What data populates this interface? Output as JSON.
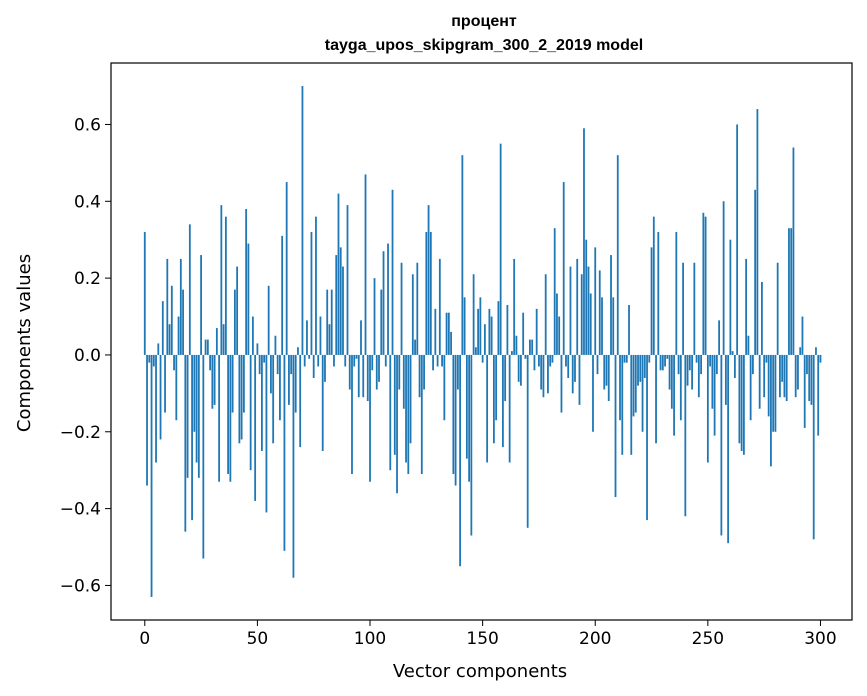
{
  "chart_data": {
    "type": "bar",
    "title": "процент",
    "subtitle": "tayga_upos_skipgram_300_2_2019 model",
    "xlabel": "Vector components",
    "ylabel": "Components values",
    "xlim": [
      -15,
      314
    ],
    "ylim": [
      -0.69,
      0.76
    ],
    "x_ticks": [
      0,
      50,
      100,
      150,
      200,
      250,
      300
    ],
    "x_tick_labels": [
      "0",
      "50",
      "100",
      "150",
      "200",
      "250",
      "300"
    ],
    "y_ticks": [
      -0.6,
      -0.4,
      -0.2,
      0.0,
      0.2,
      0.4,
      0.6
    ],
    "y_tick_labels": [
      "−0.6",
      "−0.4",
      "−0.2",
      "0.0",
      "0.2",
      "0.4",
      "0.6"
    ],
    "grid": false,
    "bar_color": "#1f77b4",
    "values": [
      0.32,
      -0.34,
      -0.02,
      -0.63,
      -0.03,
      -0.28,
      0.03,
      -0.22,
      0.14,
      -0.15,
      0.25,
      0.08,
      0.18,
      -0.04,
      -0.17,
      0.1,
      0.25,
      0.17,
      -0.46,
      -0.32,
      0.34,
      -0.43,
      -0.2,
      -0.28,
      -0.32,
      0.26,
      -0.53,
      0.04,
      0.04,
      -0.04,
      -0.14,
      -0.13,
      0.07,
      -0.33,
      0.39,
      0.08,
      0.36,
      -0.31,
      -0.33,
      -0.15,
      0.17,
      0.23,
      -0.23,
      -0.22,
      -0.15,
      0.38,
      0.29,
      -0.3,
      0.1,
      -0.38,
      0.03,
      -0.05,
      -0.25,
      -0.02,
      -0.41,
      0.18,
      -0.1,
      -0.23,
      0.05,
      -0.05,
      -0.17,
      0.31,
      -0.51,
      0.45,
      -0.13,
      -0.05,
      -0.58,
      -0.15,
      0.02,
      -0.24,
      0.7,
      -0.03,
      0.09,
      -0.01,
      0.32,
      -0.06,
      0.36,
      -0.03,
      0.1,
      -0.25,
      -0.07,
      0.17,
      0.08,
      0.17,
      -0.03,
      0.26,
      0.42,
      0.28,
      0.23,
      -0.03,
      0.39,
      -0.09,
      -0.31,
      -0.03,
      -0.01,
      -0.11,
      0.09,
      -0.11,
      0.47,
      -0.12,
      -0.33,
      -0.04,
      0.2,
      -0.09,
      -0.07,
      0.17,
      0.27,
      -0.03,
      0.29,
      -0.3,
      0.43,
      -0.26,
      -0.36,
      -0.09,
      0.24,
      -0.14,
      -0.28,
      -0.31,
      -0.23,
      0.21,
      0.04,
      0.24,
      -0.11,
      -0.31,
      -0.09,
      0.32,
      0.39,
      0.32,
      -0.04,
      0.12,
      -0.03,
      0.25,
      -0.03,
      -0.17,
      0.11,
      0.11,
      0.06,
      -0.31,
      -0.34,
      -0.09,
      -0.55,
      0.52,
      0.15,
      -0.27,
      -0.33,
      -0.47,
      0.21,
      0.02,
      0.12,
      0.15,
      -0.02,
      0.08,
      -0.28,
      0.12,
      0.1,
      -0.23,
      -0.17,
      0.14,
      0.55,
      -0.24,
      -0.12,
      0.13,
      -0.28,
      0.01,
      0.25,
      0.05,
      -0.07,
      -0.08,
      0.11,
      -0.01,
      -0.45,
      0.04,
      0.04,
      -0.04,
      0.12,
      -0.03,
      -0.09,
      -0.11,
      0.21,
      -0.1,
      -0.03,
      -0.02,
      0.33,
      0.16,
      0.1,
      -0.15,
      0.45,
      -0.03,
      -0.06,
      0.23,
      -0.1,
      -0.07,
      0.25,
      -0.13,
      0.21,
      0.59,
      0.3,
      0.23,
      0.16,
      -0.2,
      0.28,
      -0.05,
      0.22,
      0.15,
      -0.09,
      -0.08,
      -0.12,
      0.26,
      0.15,
      -0.37,
      0.52,
      -0.17,
      -0.26,
      -0.02,
      -0.02,
      0.13,
      -0.26,
      -0.16,
      -0.15,
      -0.08,
      -0.07,
      -0.2,
      -0.06,
      -0.43,
      -0.02,
      0.28,
      0.36,
      -0.23,
      0.32,
      -0.04,
      -0.04,
      -0.03,
      -0.01,
      -0.09,
      -0.14,
      -0.21,
      0.32,
      -0.05,
      -0.17,
      0.24,
      -0.42,
      -0.08,
      -0.04,
      -0.09,
      0.24,
      -0.02,
      -0.11,
      -0.05,
      0.37,
      0.36,
      -0.28,
      -0.03,
      -0.14,
      -0.21,
      -0.05,
      0.09,
      -0.47,
      0.4,
      -0.13,
      -0.49,
      0.3,
      0.01,
      -0.06,
      0.6,
      -0.23,
      -0.25,
      -0.26,
      0.25,
      0.05,
      -0.17,
      -0.05,
      0.43,
      0.64,
      -0.14,
      0.19,
      -0.11,
      -0.02,
      -0.16,
      -0.29,
      -0.2,
      -0.2,
      0.24,
      -0.11,
      -0.07,
      -0.11,
      -0.12,
      0.33,
      0.33,
      0.54,
      -0.11,
      -0.09,
      0.02,
      0.1,
      -0.19,
      -0.05,
      -0.12,
      -0.13,
      -0.48,
      0.02,
      -0.21,
      -0.02
    ]
  }
}
